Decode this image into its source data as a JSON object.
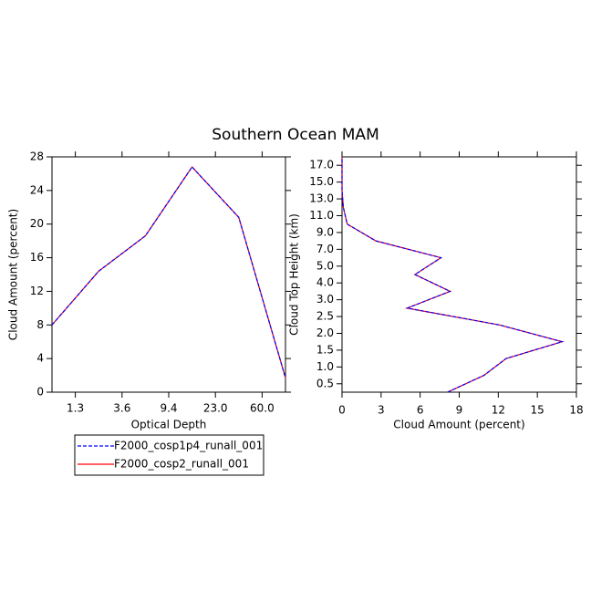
{
  "title": "Southern Ocean MAM",
  "chart_data": [
    {
      "type": "line",
      "xlabel": "Optical Depth",
      "ylabel": "Cloud Amount (percent)",
      "x": [
        0,
        1,
        2,
        3,
        4,
        5
      ],
      "xlim": [
        0,
        5
      ],
      "xticks": [
        {
          "value": 0.5,
          "label": "1.3"
        },
        {
          "value": 1.5,
          "label": "3.6"
        },
        {
          "value": 2.5,
          "label": "9.4"
        },
        {
          "value": 3.5,
          "label": "23.0"
        },
        {
          "value": 4.5,
          "label": "60.0"
        }
      ],
      "ylim": [
        0,
        28
      ],
      "yticks": [
        0,
        4,
        8,
        12,
        16,
        20,
        24,
        28
      ],
      "series": [
        {
          "name": "F2000_cosp1p4_runall_001",
          "color": "#0000ff",
          "dash": true,
          "values": [
            8,
            14.4,
            18.6,
            26.8,
            20.8,
            1.7
          ]
        },
        {
          "name": "F2000_cosp2_runall_001",
          "color": "#ff0000",
          "dash": false,
          "values": [
            8,
            14.4,
            18.6,
            26.8,
            20.8,
            1.7
          ]
        }
      ]
    },
    {
      "type": "profile",
      "xlabel": "Cloud Amount (percent)",
      "ylabel": "Cloud Top Height (km)",
      "y": [
        0,
        1,
        2,
        3,
        4,
        5,
        6,
        7,
        8,
        9,
        10,
        11,
        12,
        13,
        14
      ],
      "xlim": [
        0,
        18
      ],
      "xticks": [
        0,
        3,
        6,
        9,
        12,
        15,
        18
      ],
      "ylim": [
        0,
        14
      ],
      "yticks": [
        {
          "value": 0.5,
          "label": "0.5"
        },
        {
          "value": 1.5,
          "label": "1.0"
        },
        {
          "value": 2.5,
          "label": "1.5"
        },
        {
          "value": 3.5,
          "label": "2.0"
        },
        {
          "value": 4.5,
          "label": "2.5"
        },
        {
          "value": 5.5,
          "label": "3.0"
        },
        {
          "value": 6.5,
          "label": "4.0"
        },
        {
          "value": 7.5,
          "label": "5.0"
        },
        {
          "value": 8.5,
          "label": "7.0"
        },
        {
          "value": 9.5,
          "label": "9.0"
        },
        {
          "value": 10.5,
          "label": "11.0"
        },
        {
          "value": 11.5,
          "label": "13.0"
        },
        {
          "value": 12.5,
          "label": "15.0"
        },
        {
          "value": 13.5,
          "label": "17.0"
        }
      ],
      "series": [
        {
          "color": "#0000ff",
          "dash": true,
          "values": [
            8.1,
            10.9,
            12.6,
            16.9,
            12.1,
            5.0,
            8.3,
            5.6,
            7.6,
            2.6,
            0.4,
            0.1,
            0,
            0,
            0
          ]
        },
        {
          "color": "#ff0000",
          "dash": false,
          "values": [
            8.1,
            10.9,
            12.6,
            16.9,
            12.1,
            5.0,
            8.3,
            5.6,
            7.6,
            2.6,
            0.4,
            0.1,
            0,
            0,
            0
          ]
        }
      ]
    }
  ]
}
